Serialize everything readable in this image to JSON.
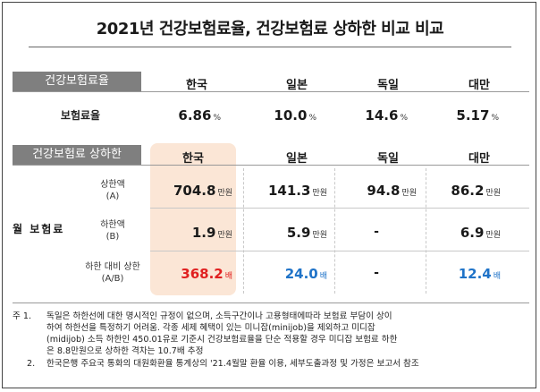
{
  "title": "2021년 건강보험료율, 건강보험료 상하한 비교 비교",
  "section1": {
    "label": "건강보험료율",
    "countries": [
      "한국",
      "일본",
      "독일",
      "대만"
    ],
    "row_label": "보험료율",
    "values": [
      {
        "v": "6.86",
        "u": "%"
      },
      {
        "v": "10.0",
        "u": "%"
      },
      {
        "v": "14.6",
        "u": "%"
      },
      {
        "v": "5.17",
        "u": "%"
      }
    ]
  },
  "section2": {
    "label": "건강보험료 상하한",
    "countries": [
      "한국",
      "일본",
      "독일",
      "대만"
    ],
    "group_label": "월 보험료",
    "rows": [
      {
        "label1": "상한액",
        "label2": "(A)",
        "cells": [
          {
            "v": "704.8",
            "u": "만원"
          },
          {
            "v": "141.3",
            "u": "만원"
          },
          {
            "v": "94.8",
            "u": "만원"
          },
          {
            "v": "86.2",
            "u": "만원"
          }
        ]
      },
      {
        "label1": "하한액",
        "label2": "(B)",
        "cells": [
          {
            "v": "1.9",
            "u": "만원"
          },
          {
            "v": "5.9",
            "u": "만원"
          },
          {
            "v": "-",
            "u": ""
          },
          {
            "v": "6.9",
            "u": "만원"
          }
        ]
      },
      {
        "label1": "하한 대비 상한",
        "label2": "(A/B)",
        "cells": [
          {
            "v": "368.2",
            "u": "배"
          },
          {
            "v": "24.0",
            "u": "배"
          },
          {
            "v": "-",
            "u": ""
          },
          {
            "v": "12.4",
            "u": "배"
          }
        ]
      }
    ]
  },
  "notes": {
    "n1_prefix": "주 1.",
    "n1_line1": "독일은 하한선에 대한 명시적인 규정이 없으며, 소득구간이나 고용형태에따라 보험료 부담이 상이",
    "n1_line2": "하여 하한선을 특정하기 어려움. 각종 세제 혜택이 있는 미니잡(minijob)을 제외하고 미디잡",
    "n1_line3": "(midijob) 소득 하한인 450.01유로 기준시 건강보험료율을 단순 적용할 경우 미디잡 보험료 하한",
    "n1_line4": "은 8.8만원으로 상하한 격차는 10.7배 추정",
    "n2_prefix": "2.",
    "n2_line1": "한국은행 주요국 통화의 대원화환율 통계상의 '21.4월말 환율 이용, 세부도출과정 및 가정은 보고서 참조"
  },
  "colors": {
    "highlight": "#fbe6d6",
    "red": "#e02020",
    "blue": "#1f73c8",
    "label_bg": "#7f7f7f"
  }
}
